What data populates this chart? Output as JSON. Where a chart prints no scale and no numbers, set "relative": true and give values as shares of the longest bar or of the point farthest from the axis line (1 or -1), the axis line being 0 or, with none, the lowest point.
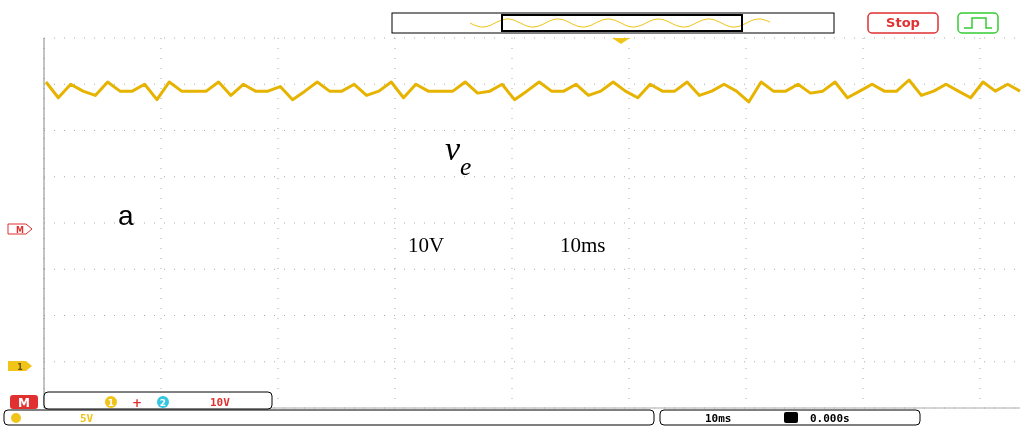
{
  "chart_data": {
    "type": "line",
    "relative": true,
    "grid": true,
    "marker": "none",
    "line_style": "solid",
    "categories": [
      null,
      null,
      null,
      null,
      null,
      null,
      null,
      null,
      null,
      null,
      null,
      null,
      null,
      null,
      null,
      null,
      null,
      null,
      null,
      null,
      null,
      null,
      null,
      null,
      null,
      null,
      null,
      null,
      null,
      null,
      null,
      null,
      null,
      null,
      null,
      null,
      null,
      null,
      null,
      null,
      null,
      null,
      null,
      null,
      null,
      null,
      null,
      null,
      null,
      null,
      null,
      null,
      null,
      null,
      null,
      null,
      null,
      null,
      null,
      null,
      null,
      null,
      null,
      null,
      null,
      null,
      null,
      null,
      null,
      null,
      null,
      null,
      null,
      null,
      null,
      null,
      null,
      null,
      null,
      null
    ],
    "series": [
      {
        "color": "#e6b400",
        "values": [
          0.994,
          0.946,
          0.987,
          0.966,
          0.953,
          0.994,
          0.966,
          0.966,
          0.987,
          0.94,
          0.994,
          0.966,
          0.966,
          0.966,
          0.994,
          0.953,
          0.987,
          0.966,
          0.966,
          0.98,
          0.94,
          0.966,
          0.994,
          0.966,
          0.966,
          0.987,
          0.953,
          0.966,
          0.994,
          0.946,
          0.987,
          0.966,
          0.966,
          0.966,
          0.994,
          0.96,
          0.966,
          0.987,
          0.94,
          0.966,
          0.994,
          0.966,
          0.966,
          0.987,
          0.953,
          0.966,
          0.994,
          0.966,
          0.946,
          0.987,
          0.966,
          0.966,
          0.994,
          0.953,
          0.966,
          0.987,
          0.966,
          0.933,
          0.994,
          0.966,
          0.966,
          0.987,
          0.96,
          0.966,
          0.994,
          0.946,
          0.966,
          0.987,
          0.966,
          0.966,
          1.0,
          0.953,
          0.966,
          0.987,
          0.966,
          0.946,
          0.994,
          0.966,
          0.987,
          0.966
        ]
      }
    ],
    "annotations": [
      "v$_{e}$",
      "a",
      "10V",
      "10ms",
      "Stop",
      "M",
      "1",
      "+",
      "2",
      "10V",
      "5V",
      "10ms",
      "0.000s",
      "M",
      "1"
    ]
  }
}
